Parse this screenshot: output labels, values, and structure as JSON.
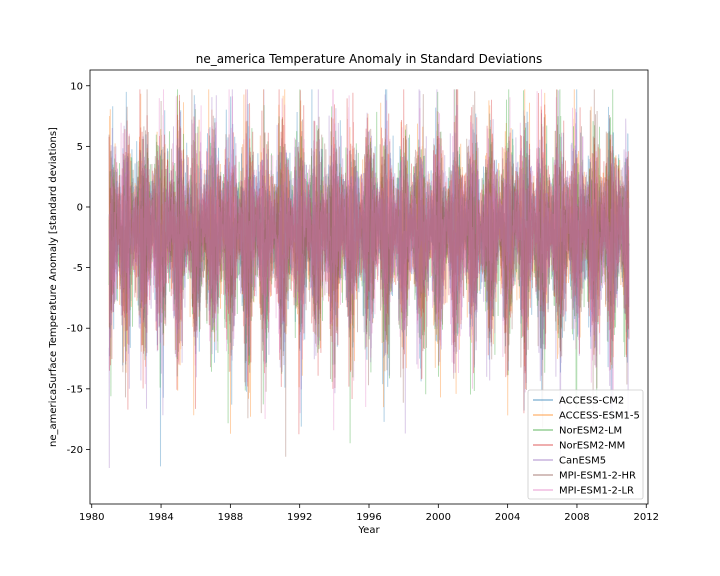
{
  "chart_data": {
    "type": "line",
    "title": "ne_america Temperature Anomaly in Standard Deviations",
    "xlabel": "Year",
    "ylabel": "ne_americaSurface Temperature Anomaly [standard deviations]",
    "xlim": [
      1979.9,
      2012.1
    ],
    "ylim": [
      -24.5,
      11.3
    ],
    "x_ticks": [
      1980,
      1984,
      1988,
      1992,
      1996,
      2000,
      2004,
      2008,
      2012
    ],
    "y_ticks": [
      10,
      5,
      0,
      -5,
      -10,
      -15,
      -20
    ],
    "x_range_data": [
      1981.0,
      2011.0
    ],
    "grid": false,
    "legend_position": "lower right",
    "series": [
      {
        "name": "ACCESS-CM2",
        "color": "#1f77b4"
      },
      {
        "name": "ACCESS-ESM1-5",
        "color": "#ff7f0e"
      },
      {
        "name": "NorESM2-LM",
        "color": "#2ca02c"
      },
      {
        "name": "NorESM2-MM",
        "color": "#d62728"
      },
      {
        "name": "CanESM5",
        "color": "#9467bd"
      },
      {
        "name": "MPI-ESM1-2-HR",
        "color": "#8c564b"
      },
      {
        "name": "MPI-ESM1-2-LR",
        "color": "#e377c2"
      }
    ],
    "approximate_envelope": {
      "typical_summer_max": 4.5,
      "typical_winter_min": -13,
      "band_center": -2.5,
      "extremes": {
        "max": 9.7,
        "min": -22.4
      }
    }
  }
}
